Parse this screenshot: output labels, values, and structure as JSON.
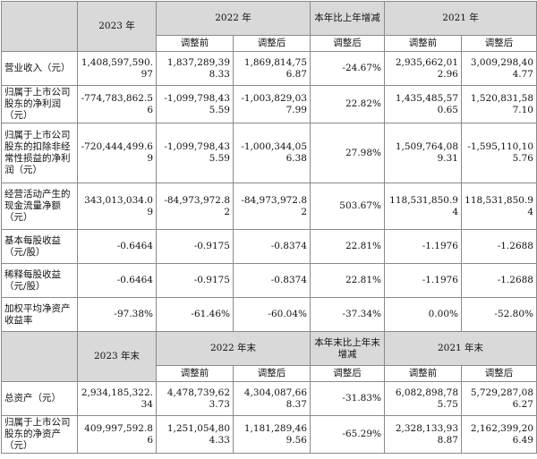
{
  "header1": {
    "year_2023": "2023 年",
    "year_2022": "2022 年",
    "change": "本年比上年增减",
    "year_2021": "2021 年"
  },
  "subheaders": {
    "before": "调整前",
    "after": "调整后"
  },
  "rows1": [
    {
      "label": "营业收入（元）",
      "v2023": "1,408,597,590.97",
      "v2022_before": "1,837,289,398.33",
      "v2022_after": "1,869,814,756.87",
      "change": "-24.67%",
      "v2021_before": "2,935,662,012.96",
      "v2021_after": "3,009,298,404.77"
    },
    {
      "label": "归属于上市公司股东的净利润（元）",
      "v2023": "-774,783,862.56",
      "v2022_before": "-1,099,798,435.59",
      "v2022_after": "-1,003,829,037.99",
      "change": "22.82%",
      "v2021_before": "1,435,485,570.65",
      "v2021_after": "1,520,831,587.10"
    },
    {
      "label": "归属于上市公司股东的扣除非经常性损益的净利润（元）",
      "v2023": "-720,444,499.69",
      "v2022_before": "-1,099,798,435.59",
      "v2022_after": "-1,000,344,056.38",
      "change": "27.98%",
      "v2021_before": "1,509,764,089.31",
      "v2021_after": "-1,595,110,105.76"
    },
    {
      "label": "经营活动产生的现金流量净额（元）",
      "v2023": "343,013,034.09",
      "v2022_before": "-84,973,972.82",
      "v2022_after": "-84,973,972.82",
      "change": "503.67%",
      "v2021_before": "118,531,850.94",
      "v2021_after": "118,531,850.94"
    },
    {
      "label": "基本每股收益（元/股）",
      "v2023": "-0.6464",
      "v2022_before": "-0.9175",
      "v2022_after": "-0.8374",
      "change": "22.81%",
      "v2021_before": "-1.1976",
      "v2021_after": "-1.2688"
    },
    {
      "label": "稀释每股收益（元/股）",
      "v2023": "-0.6464",
      "v2022_before": "-0.9175",
      "v2022_after": "-0.8374",
      "change": "22.81%",
      "v2021_before": "-1.1976",
      "v2021_after": "-1.2688"
    },
    {
      "label": "加权平均净资产收益率",
      "v2023": "-97.38%",
      "v2022_before": "-61.46%",
      "v2022_after": "-60.04%",
      "change": "-37.34%",
      "v2021_before": "0.00%",
      "v2021_after": "-52.80%"
    }
  ],
  "header2": {
    "year_2023": "2023 年末",
    "year_2022": "2022 年末",
    "change": "本年末比上年末增减",
    "year_2021": "2021 年末"
  },
  "rows2": [
    {
      "label": "总资产（元）",
      "v2023": "2,934,185,322.34",
      "v2022_before": "4,478,739,623.73",
      "v2022_after": "4,304,087,668.37",
      "change": "-31.83%",
      "v2021_before": "6,082,898,785.75",
      "v2021_after": "5,729,287,086.27"
    },
    {
      "label": "归属于上市公司股东的净资产（元）",
      "v2023": "409,997,592.86",
      "v2022_before": "1,251,054,804.33",
      "v2022_after": "1,181,289,469.56",
      "change": "-65.29%",
      "v2021_before": "2,328,133,938.87",
      "v2021_after": "2,162,399,206.49"
    }
  ]
}
